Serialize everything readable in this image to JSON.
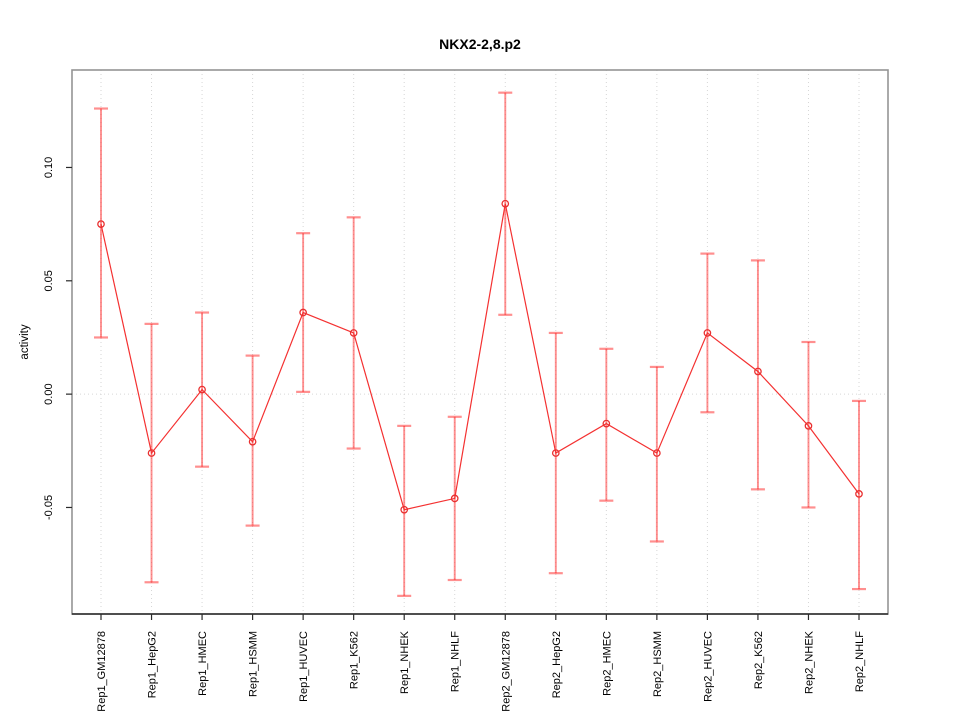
{
  "title": "NKX2-2,8.p2",
  "y_axis_label": "activity",
  "chart_data": {
    "type": "line",
    "title": "NKX2-2,8.p2",
    "xlabel": "",
    "ylabel": "activity",
    "legend_position": "none",
    "marker": "open-circle",
    "grid": {
      "vertical_dotted_per_category": true,
      "horizontal_dotted_at_zero": true
    },
    "categories": [
      "Rep1_GM12878",
      "Rep1_HepG2",
      "Rep1_HMEC",
      "Rep1_HSMM",
      "Rep1_HUVEC",
      "Rep1_K562",
      "Rep1_NHEK",
      "Rep1_NHLF",
      "Rep2_GM12878",
      "Rep2_HepG2",
      "Rep2_HMEC",
      "Rep2_HSMM",
      "Rep2_HUVEC",
      "Rep2_K562",
      "Rep2_NHEK",
      "Rep2_NHLF"
    ],
    "series": [
      {
        "name": "activity",
        "values": [
          0.075,
          -0.026,
          0.002,
          -0.021,
          0.036,
          0.027,
          -0.051,
          -0.046,
          0.084,
          -0.026,
          -0.013,
          -0.026,
          0.027,
          0.01,
          -0.014,
          -0.044
        ],
        "error_high": [
          0.126,
          0.031,
          0.036,
          0.017,
          0.071,
          0.078,
          -0.014,
          -0.01,
          0.133,
          0.027,
          0.02,
          0.012,
          0.062,
          0.059,
          0.023,
          -0.003
        ],
        "error_low": [
          0.025,
          -0.083,
          -0.032,
          -0.058,
          0.001,
          -0.024,
          -0.089,
          -0.082,
          0.035,
          -0.079,
          -0.047,
          -0.065,
          -0.008,
          -0.042,
          -0.05,
          -0.086
        ]
      }
    ],
    "ylim": [
      -0.097,
      0.143
    ],
    "yticks": [
      -0.05,
      0,
      0.05,
      0.1
    ],
    "ytick_labels": [
      "-0.05",
      "0.00",
      "0.05",
      "0.10"
    ],
    "colors": {
      "point": "#e93030",
      "line": "#f43131",
      "error_bar": "#ff2020",
      "grid": "#d6d6d6",
      "box": "#949494",
      "axis": "#2a2a2a"
    }
  }
}
